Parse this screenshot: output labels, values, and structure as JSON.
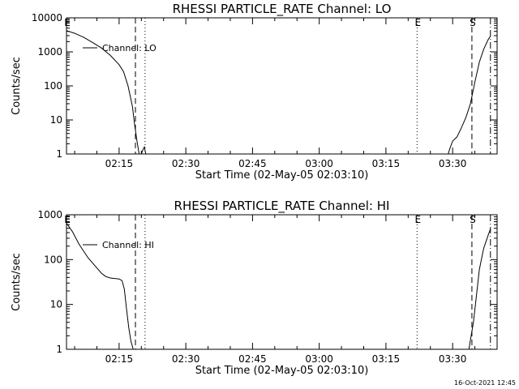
{
  "timestamp": "16-Oct-2021 12:45",
  "chart_data": [
    {
      "type": "line",
      "title": "RHESSI PARTICLE_RATE Channel: LO",
      "xlabel": "Start Time (02-May-05 02:03:10)",
      "ylabel": "Counts/sec",
      "yscale": "log",
      "ylim": [
        1,
        10000
      ],
      "xlim": [
        "02:03:10",
        "03:40:00"
      ],
      "x_ticks": [
        "02:15",
        "02:30",
        "02:45",
        "03:00",
        "03:15",
        "03:30"
      ],
      "y_ticks": [
        "1",
        "10",
        "100",
        "1000",
        "10000"
      ],
      "legend": {
        "label": "Channel: LO",
        "placement": "top-left"
      },
      "markers": [
        {
          "label": "E",
          "time": "02:03:10",
          "style": "solid"
        },
        {
          "label": "",
          "time": "02:18:40",
          "style": "dashed"
        },
        {
          "label": "",
          "time": "02:20:50",
          "style": "dotted"
        },
        {
          "label": "E",
          "time": "03:22:00",
          "style": "dotted"
        },
        {
          "label": "S",
          "time": "03:34:20",
          "style": "dashed"
        },
        {
          "label": "",
          "time": "03:38:30",
          "style": "dash-dot"
        }
      ],
      "series": [
        {
          "segments": [
            {
              "x": [
                "02:03:10",
                "02:05:00",
                "02:07:00",
                "02:09:00",
                "02:11:00",
                "02:13:00",
                "02:15:00",
                "02:16:00",
                "02:17:00",
                "02:18:00",
                "02:18:30",
                "02:19:00",
                "02:19:30"
              ],
              "y": [
                4200,
                3500,
                2700,
                1900,
                1300,
                800,
                420,
                260,
                100,
                25,
                7,
                2.5,
                1
              ]
            },
            {
              "x": [
                "02:20:00",
                "02:20:20",
                "02:20:40",
                "02:21:00"
              ],
              "y": [
                1,
                1.3,
                1.6,
                1
              ]
            },
            {
              "x": [
                "03:29:00",
                "03:29:20",
                "03:30:00",
                "03:31:00",
                "03:32:00",
                "03:33:00",
                "03:34:00",
                "03:35:00",
                "03:36:00",
                "03:37:00",
                "03:38:00",
                "03:38:30"
              ],
              "y": [
                1,
                1.4,
                2.4,
                3.2,
                6,
                12,
                30,
                130,
                500,
                1200,
                2300,
                2900
              ]
            }
          ]
        }
      ]
    },
    {
      "type": "line",
      "title": "RHESSI PARTICLE_RATE Channel: HI",
      "xlabel": "Start Time (02-May-05 02:03:10)",
      "ylabel": "Counts/sec",
      "yscale": "log",
      "ylim": [
        1,
        1000
      ],
      "xlim": [
        "02:03:10",
        "03:40:00"
      ],
      "x_ticks": [
        "02:15",
        "02:30",
        "02:45",
        "03:00",
        "03:15",
        "03:30"
      ],
      "y_ticks": [
        "1",
        "10",
        "100",
        "1000"
      ],
      "legend": {
        "label": "Channel: HI",
        "placement": "top-left"
      },
      "markers": [
        {
          "label": "E",
          "time": "02:03:10",
          "style": "solid"
        },
        {
          "label": "",
          "time": "02:18:40",
          "style": "dashed"
        },
        {
          "label": "",
          "time": "02:20:50",
          "style": "dotted"
        },
        {
          "label": "E",
          "time": "03:22:00",
          "style": "dotted"
        },
        {
          "label": "S",
          "time": "03:34:20",
          "style": "dashed"
        },
        {
          "label": "",
          "time": "03:38:30",
          "style": "dash-dot"
        }
      ],
      "series": [
        {
          "segments": [
            {
              "x": [
                "02:03:10",
                "02:04:30",
                "02:06:00",
                "02:08:00",
                "02:10:00",
                "02:11:00",
                "02:12:00",
                "02:13:00",
                "02:14:00",
                "02:15:00",
                "02:15:40",
                "02:16:10",
                "02:16:40",
                "02:17:10",
                "02:17:40",
                "02:18:10"
              ],
              "y": [
                650,
                420,
                220,
                110,
                65,
                50,
                42,
                39,
                38,
                37,
                34,
                22,
                8,
                3,
                1.5,
                1
              ]
            },
            {
              "x": [
                "03:33:40",
                "03:34:00",
                "03:34:40",
                "03:35:20",
                "03:36:00",
                "03:37:00",
                "03:38:00",
                "03:38:30"
              ],
              "y": [
                1,
                1.6,
                4,
                15,
                60,
                180,
                350,
                480
              ]
            }
          ]
        }
      ]
    }
  ]
}
